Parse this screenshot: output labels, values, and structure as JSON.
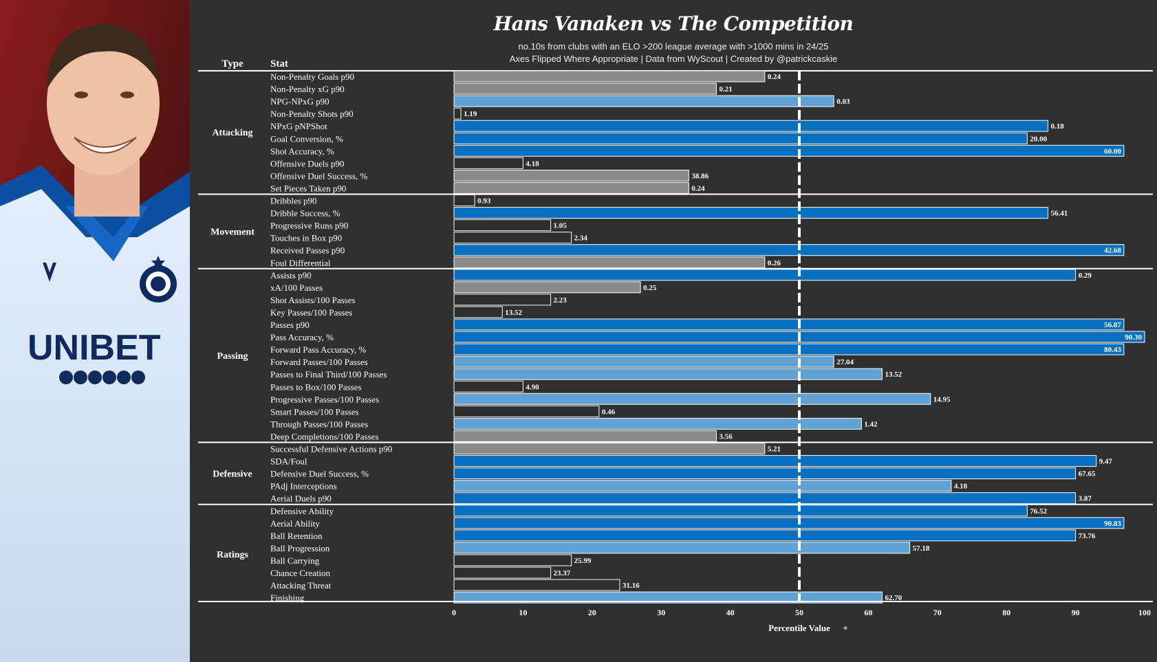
{
  "title": "Hans Vanaken vs The Competition",
  "subtitle_lines": [
    "no.10s from clubs with an ELO >200 league average with >1000 mins in 24/25",
    "Axes Flipped Where Appropriate | Data from WyScout | Created by @patrickcaskie"
  ],
  "photo": {
    "description": "player photo",
    "shirt_sponsor": "UNIBET"
  },
  "colors": {
    "background": "#303030",
    "dark_blue": "#0870c1",
    "light_blue": "#5fa2d3",
    "grey": "#8a8a8a",
    "white_bar": "#2e2e2e",
    "divider": "#ffffff"
  },
  "chart_data": {
    "type": "bar",
    "orientation": "horizontal",
    "title": "Hans Vanaken vs The Competition",
    "column_headers": {
      "type": "Type",
      "stat": "Stat"
    },
    "xlabel": "Percentile Value",
    "xlim": [
      0,
      100
    ],
    "xticks": [
      0,
      10,
      20,
      30,
      40,
      50,
      60,
      70,
      80,
      90,
      100
    ],
    "reference_line": 50,
    "groups": [
      {
        "name": "Attacking",
        "stats": [
          {
            "label": "Non-Penalty Goals p90",
            "percentile": 45,
            "value": "0.24",
            "color": "grey"
          },
          {
            "label": "Non-Penalty xG p90",
            "percentile": 38,
            "value": "0.21",
            "color": "grey"
          },
          {
            "label": "NPG-NPxG p90",
            "percentile": 55,
            "value": "0.03",
            "color": "light_blue"
          },
          {
            "label": "Non-Penalty Shots p90",
            "percentile": 1,
            "value": "1.19",
            "color": "white_bar"
          },
          {
            "label": "NPxG pNPShot",
            "percentile": 86,
            "value": "0.18",
            "color": "dark_blue"
          },
          {
            "label": "Goal Conversion, %",
            "percentile": 83,
            "value": "20.00",
            "color": "dark_blue"
          },
          {
            "label": "Shot Accuracy, %",
            "percentile": 97,
            "value": "60.00",
            "color": "dark_blue"
          },
          {
            "label": "Offensive Duels p90",
            "percentile": 10,
            "value": "4.18",
            "color": "white_bar"
          },
          {
            "label": "Offensive Duel Success, %",
            "percentile": 34,
            "value": "38.86",
            "color": "grey"
          },
          {
            "label": "Set Pieces Taken p90",
            "percentile": 34,
            "value": "0.24",
            "color": "grey"
          }
        ]
      },
      {
        "name": "Movement",
        "stats": [
          {
            "label": "Dribbles p90",
            "percentile": 3,
            "value": "0.93",
            "color": "white_bar"
          },
          {
            "label": "Dribble Success, %",
            "percentile": 86,
            "value": "56.41",
            "color": "dark_blue"
          },
          {
            "label": "Progressive Runs p90",
            "percentile": 14,
            "value": "1.05",
            "color": "white_bar"
          },
          {
            "label": "Touches in Box p90",
            "percentile": 17,
            "value": "2.34",
            "color": "white_bar"
          },
          {
            "label": "Received Passes p90",
            "percentile": 97,
            "value": "42.68",
            "color": "dark_blue"
          },
          {
            "label": "Foul Differential",
            "percentile": 45,
            "value": "0.26",
            "color": "grey"
          }
        ]
      },
      {
        "name": "Passing",
        "stats": [
          {
            "label": "Assists p90",
            "percentile": 90,
            "value": "0.29",
            "color": "dark_blue"
          },
          {
            "label": "xA/100 Passes",
            "percentile": 27,
            "value": "0.25",
            "color": "grey"
          },
          {
            "label": "Shot Assists/100 Passes",
            "percentile": 14,
            "value": "2.23",
            "color": "white_bar"
          },
          {
            "label": "Key Passes/100 Passes",
            "percentile": 7,
            "value": "13.52",
            "color": "white_bar"
          },
          {
            "label": "Passes p90",
            "percentile": 97,
            "value": "56.87",
            "color": "dark_blue"
          },
          {
            "label": "Pass Accuracy, %",
            "percentile": 100,
            "value": "90.30",
            "color": "dark_blue"
          },
          {
            "label": "Forward Pass Accuracy, %",
            "percentile": 97,
            "value": "80.43",
            "color": "dark_blue"
          },
          {
            "label": "Forward Passes/100 Passes",
            "percentile": 55,
            "value": "27.04",
            "color": "light_blue"
          },
          {
            "label": "Passes to Final Third/100 Passes",
            "percentile": 62,
            "value": "13.52",
            "color": "light_blue"
          },
          {
            "label": "Passes to Box/100 Passes",
            "percentile": 10,
            "value": "4.90",
            "color": "white_bar"
          },
          {
            "label": "Progressive Passes/100 Passes",
            "percentile": 69,
            "value": "14.95",
            "color": "light_blue"
          },
          {
            "label": "Smart Passes/100 Passes",
            "percentile": 21,
            "value": "0.46",
            "color": "white_bar"
          },
          {
            "label": "Through Passes/100 Passes",
            "percentile": 59,
            "value": "1.42",
            "color": "light_blue"
          },
          {
            "label": "Deep Completions/100 Passes",
            "percentile": 38,
            "value": "3.56",
            "color": "grey"
          }
        ]
      },
      {
        "name": "Defensive",
        "stats": [
          {
            "label": "Successful Defensive Actions p90",
            "percentile": 45,
            "value": "5.21",
            "color": "grey"
          },
          {
            "label": "SDA/Foul",
            "percentile": 93,
            "value": "9.47",
            "color": "dark_blue"
          },
          {
            "label": "Defensive Duel Success, %",
            "percentile": 90,
            "value": "67.65",
            "color": "dark_blue"
          },
          {
            "label": "PAdj Interceptions",
            "percentile": 72,
            "value": "4.18",
            "color": "light_blue"
          },
          {
            "label": "Aerial Duels p90",
            "percentile": 90,
            "value": "3.87",
            "color": "dark_blue"
          }
        ]
      },
      {
        "name": "Ratings",
        "stats": [
          {
            "label": "Defensive Ability",
            "percentile": 83,
            "value": "76.52",
            "color": "dark_blue"
          },
          {
            "label": "Aerial Ability",
            "percentile": 97,
            "value": "90.83",
            "color": "dark_blue"
          },
          {
            "label": "Ball Retention",
            "percentile": 90,
            "value": "73.76",
            "color": "dark_blue"
          },
          {
            "label": "Ball Progression",
            "percentile": 66,
            "value": "57.18",
            "color": "light_blue"
          },
          {
            "label": "Ball Carrying",
            "percentile": 17,
            "value": "25.99",
            "color": "white_bar"
          },
          {
            "label": "Chance Creation",
            "percentile": 14,
            "value": "23.37",
            "color": "white_bar"
          },
          {
            "label": "Attacking Threat",
            "percentile": 24,
            "value": "31.16",
            "color": "white_bar"
          },
          {
            "label": "Finishing",
            "percentile": 62,
            "value": "62.70",
            "color": "light_blue"
          }
        ]
      }
    ]
  }
}
